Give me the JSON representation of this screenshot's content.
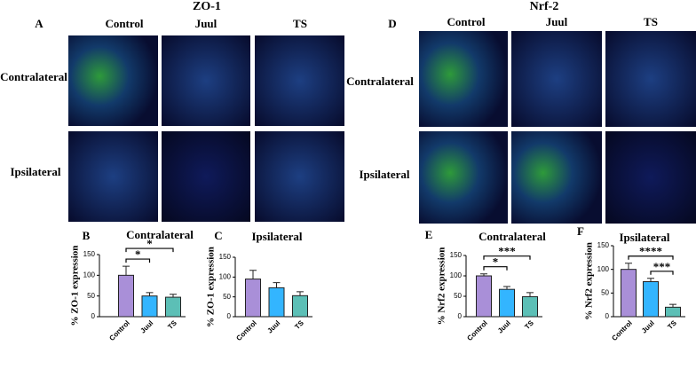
{
  "panel_groups": [
    {
      "title": "ZO-1",
      "letter": "A",
      "columns": [
        "Control",
        "Juul",
        "TS"
      ],
      "rows": [
        "Contralateral",
        "Ipsilateral"
      ]
    },
    {
      "title": "Nrf-2",
      "letter": "D",
      "columns": [
        "Control",
        "Juul",
        "TS"
      ],
      "rows": [
        "Contralateral",
        "Ipsilateral"
      ]
    }
  ],
  "chart_data": [
    {
      "type": "bar",
      "letter": "B",
      "title": "Contralateral",
      "y_label": "% ZO-1 expression",
      "categories": [
        "Control",
        "Juul",
        "TS"
      ],
      "values": [
        100,
        50,
        47
      ],
      "errors": [
        22,
        8,
        7
      ],
      "colors": [
        "#a98fd8",
        "#33b5ff",
        "#5cbfb6"
      ],
      "ylim": [
        0,
        150
      ],
      "yticks": [
        0,
        50,
        100,
        150
      ],
      "significance": [
        {
          "label": "*",
          "from": 0,
          "to": 1
        },
        {
          "label": "*",
          "from": 0,
          "to": 2
        }
      ]
    },
    {
      "type": "bar",
      "letter": "C",
      "title": "Ipsilateral",
      "y_label": "% ZO-1 expression",
      "categories": [
        "Control",
        "Juul",
        "TS"
      ],
      "values": [
        95,
        73,
        53
      ],
      "errors": [
        22,
        13,
        10
      ],
      "colors": [
        "#a98fd8",
        "#33b5ff",
        "#5cbfb6"
      ],
      "ylim": [
        0,
        150
      ],
      "yticks": [
        0,
        50,
        100,
        150
      ],
      "significance": []
    },
    {
      "type": "bar",
      "letter": "E",
      "title": "Contralateral",
      "y_label": "% Nrf2 expression",
      "categories": [
        "Control",
        "Juul",
        "TS"
      ],
      "values": [
        100,
        67,
        49
      ],
      "errors": [
        5,
        7,
        10
      ],
      "colors": [
        "#a98fd8",
        "#33b5ff",
        "#5cbfb6"
      ],
      "ylim": [
        0,
        150
      ],
      "yticks": [
        0,
        50,
        100,
        150
      ],
      "significance": [
        {
          "label": "*",
          "from": 0,
          "to": 1
        },
        {
          "label": "***",
          "from": 0,
          "to": 2
        }
      ]
    },
    {
      "type": "bar",
      "letter": "F",
      "title": "Ipsilateral",
      "y_label": "% Nrf2 expression",
      "categories": [
        "Control",
        "Juul",
        "TS"
      ],
      "values": [
        100,
        74,
        20
      ],
      "errors": [
        13,
        7,
        6
      ],
      "colors": [
        "#a98fd8",
        "#33b5ff",
        "#5cbfb6"
      ],
      "ylim": [
        0,
        150
      ],
      "yticks": [
        0,
        50,
        100,
        150
      ],
      "significance": [
        {
          "label": "***",
          "from": 1,
          "to": 2
        },
        {
          "label": "****",
          "from": 0,
          "to": 2
        }
      ]
    }
  ]
}
